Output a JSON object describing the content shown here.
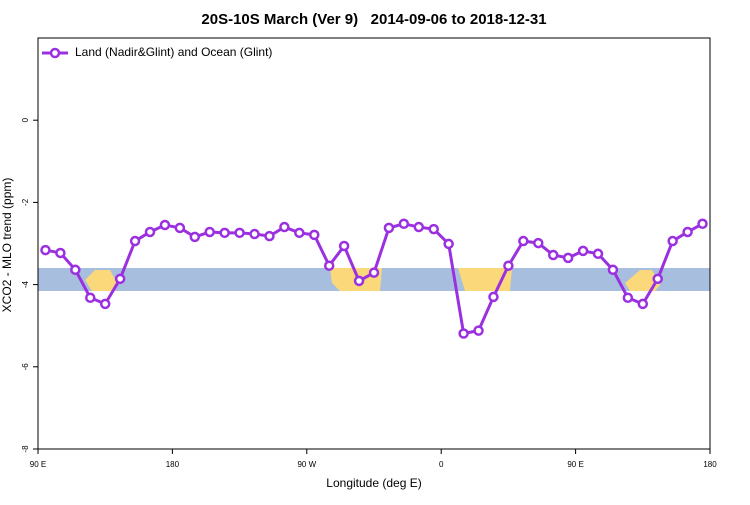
{
  "chart_data": {
    "type": "line",
    "title": "20S-10S March (Ver 9)   2014-09-06 to 2018-12-31",
    "xlabel": "Longitude (deg E)",
    "ylabel": "XCO2 - MLO trend (ppm)",
    "x": [
      95,
      105,
      115,
      125,
      135,
      145,
      155,
      165,
      175,
      185,
      195,
      205,
      215,
      225,
      235,
      245,
      255,
      265,
      275,
      285,
      295,
      305,
      315,
      325,
      335,
      345,
      355,
      365,
      375,
      385,
      395,
      405,
      415,
      425,
      435,
      445,
      455,
      465,
      475,
      485,
      495,
      505,
      515,
      525,
      535
    ],
    "series": [
      {
        "name": "Land (Nadir&Glint) and Ocean (Glint)",
        "color": "#9b30e0",
        "values": [
          -3.16,
          -3.23,
          -3.64,
          -4.32,
          -4.47,
          -3.86,
          -2.94,
          -2.72,
          -2.55,
          -2.62,
          -2.84,
          -2.72,
          -2.74,
          -2.74,
          -2.77,
          -2.82,
          -2.6,
          -2.74,
          -2.79,
          -3.54,
          -3.06,
          -3.91,
          -3.71,
          -2.62,
          -2.52,
          -2.6,
          -2.65,
          -3.01,
          -5.19,
          -5.12,
          -4.3,
          -3.54,
          -2.94,
          -2.99,
          -3.28,
          -3.35,
          -3.18,
          -3.25,
          -3.64,
          -4.32,
          -4.47,
          -3.86,
          -2.94,
          -2.72,
          -2.52
        ]
      }
    ],
    "xlim": [
      90,
      540
    ],
    "xticks": [
      {
        "value": 90,
        "label": "90 E"
      },
      180,
      {
        "value": 270,
        "label": "90 W"
      },
      {
        "value": 360,
        "label": "0"
      },
      {
        "value": 450,
        "label": "90 E"
      },
      {
        "value": 540,
        "label": "180"
      }
    ],
    "ylim": [
      -8,
      2
    ],
    "yticks": [
      -8,
      -6,
      -4,
      -2,
      0
    ],
    "legend": "top-left"
  }
}
